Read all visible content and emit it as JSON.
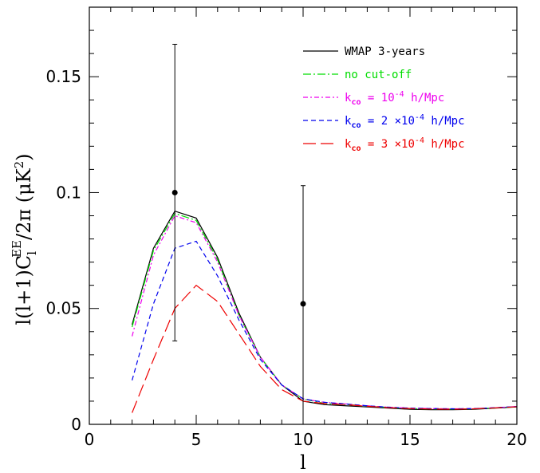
{
  "chart_data": {
    "type": "line",
    "xlabel": "l",
    "ylabel": "l(l+1)C_l^EE/2π (μK²)",
    "xlim": [
      0,
      20
    ],
    "ylim": [
      0,
      0.18
    ],
    "x_ticks": [
      0,
      5,
      10,
      15,
      20
    ],
    "x_tick_labels": [
      "0",
      "5",
      "10",
      "15",
      "20"
    ],
    "y_ticks": [
      0,
      0.05,
      0.1,
      0.15
    ],
    "y_tick_labels": [
      "0",
      "0.05",
      "0.1",
      "0.15"
    ],
    "legend_position": "top-right",
    "grid": false,
    "series": [
      {
        "name": "WMAP 3-years",
        "color": "#000000",
        "dash": "solid",
        "x": [
          2,
          3,
          4,
          5,
          6,
          7,
          8,
          9,
          10,
          11,
          12,
          13,
          14,
          15,
          16,
          17,
          18,
          19,
          20
        ],
        "y": [
          0.043,
          0.076,
          0.092,
          0.089,
          0.072,
          0.048,
          0.029,
          0.017,
          0.01,
          0.0085,
          0.008,
          0.0075,
          0.007,
          0.0065,
          0.0063,
          0.0063,
          0.0065,
          0.007,
          0.0075
        ]
      },
      {
        "name": "no cut-off",
        "color": "#00dd00",
        "dash": "dashdot",
        "x": [
          2,
          3,
          4,
          5,
          6,
          7,
          8,
          9,
          10,
          11,
          12,
          13,
          14,
          15,
          16,
          17,
          18,
          19,
          20
        ],
        "y": [
          0.042,
          0.075,
          0.091,
          0.088,
          0.071,
          0.047,
          0.029,
          0.017,
          0.011,
          0.009,
          0.0085,
          0.008,
          0.0072,
          0.0068,
          0.0066,
          0.0066,
          0.0067,
          0.0071,
          0.0076
        ]
      },
      {
        "name": "k_co = 10^-4 h/Mpc",
        "color": "#ee00ee",
        "dash": "dashdot2",
        "x": [
          2,
          3,
          4,
          5,
          6,
          7,
          8,
          9,
          10,
          11,
          12,
          13,
          14,
          15,
          16,
          17,
          18,
          19,
          20
        ],
        "y": [
          0.038,
          0.073,
          0.09,
          0.087,
          0.07,
          0.047,
          0.029,
          0.017,
          0.011,
          0.0095,
          0.0088,
          0.008,
          0.0074,
          0.007,
          0.0068,
          0.0067,
          0.0068,
          0.0072,
          0.0077
        ]
      },
      {
        "name": "k_co = 2 ×10^-4 h/Mpc",
        "color": "#0000ee",
        "dash": "dashed",
        "x": [
          2,
          3,
          4,
          5,
          6,
          7,
          8,
          9,
          10,
          11,
          12,
          13,
          14,
          15,
          16,
          17,
          18,
          19,
          20
        ],
        "y": [
          0.019,
          0.052,
          0.076,
          0.079,
          0.064,
          0.045,
          0.028,
          0.017,
          0.011,
          0.0095,
          0.0088,
          0.008,
          0.0074,
          0.007,
          0.0068,
          0.0067,
          0.0068,
          0.0072,
          0.0077
        ]
      },
      {
        "name": "k_co = 3 ×10^-4 h/Mpc",
        "color": "#ee0000",
        "dash": "longdash",
        "x": [
          2,
          3,
          4,
          5,
          6,
          7,
          8,
          9,
          10,
          11,
          12,
          13,
          14,
          15,
          16,
          17,
          18,
          19,
          20
        ],
        "y": [
          0.005,
          0.028,
          0.05,
          0.06,
          0.053,
          0.039,
          0.025,
          0.015,
          0.01,
          0.009,
          0.0085,
          0.0078,
          0.0072,
          0.0068,
          0.0066,
          0.0065,
          0.0067,
          0.0071,
          0.0076
        ]
      }
    ],
    "data_points": [
      {
        "x": 4,
        "y": 0.1,
        "y_err_low": 0.036,
        "y_err_high": 0.164
      },
      {
        "x": 10,
        "y": 0.052,
        "y_err_low": 0.0,
        "y_err_high": 0.103
      }
    ],
    "legend": [
      {
        "text": "WMAP 3-years",
        "color": "#000000",
        "dash": "solid"
      },
      {
        "text": "no cut-off",
        "color": "#00dd00",
        "dash": "dashdot"
      },
      {
        "prefix": "k",
        "sub": "co",
        "text": " = 10",
        "sup": "-4",
        "suffix": " h/Mpc",
        "color": "#ee00ee",
        "dash": "dashdot2"
      },
      {
        "prefix": "k",
        "sub": "co",
        "text": " = 2 ×10",
        "sup": "-4",
        "suffix": " h/Mpc",
        "color": "#0000ee",
        "dash": "dashed"
      },
      {
        "prefix": "k",
        "sub": "co",
        "text": " = 3 ×10",
        "sup": "-4",
        "suffix": " h/Mpc",
        "color": "#ee0000",
        "dash": "longdash"
      }
    ]
  }
}
